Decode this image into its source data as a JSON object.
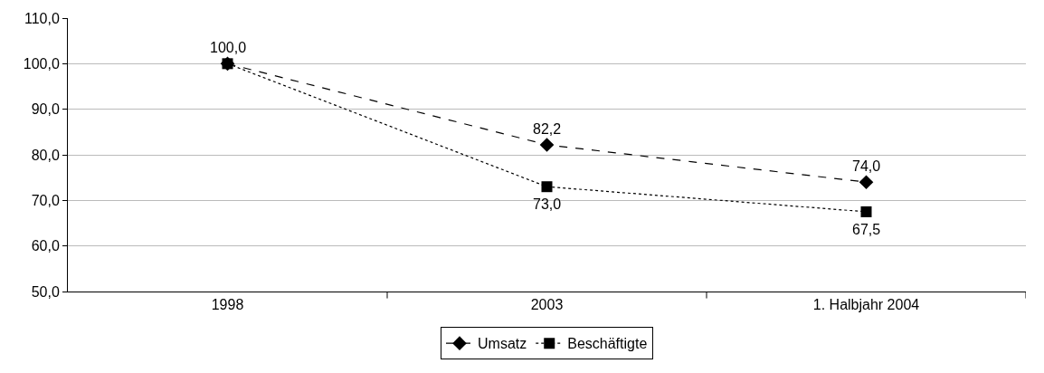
{
  "chart_data": {
    "type": "line",
    "categories": [
      "1998",
      "2003",
      "1. Halbjahr 2004"
    ],
    "series": [
      {
        "name": "Umsatz",
        "color": "#000000",
        "values": [
          100.0,
          82.2,
          74.0
        ],
        "marker": "diamond",
        "line_style": "dashed",
        "value_labels": [
          "100,0",
          "82,2",
          "74,0"
        ]
      },
      {
        "name": "Beschäftigte",
        "color": "#000000",
        "values": [
          100.0,
          73.0,
          67.5
        ],
        "marker": "square",
        "line_style": "dotted",
        "value_labels": [
          null,
          "73,0",
          "67,5"
        ]
      }
    ],
    "ylim": [
      50,
      110
    ],
    "yticks": [
      {
        "value": 50,
        "label": "50,0"
      },
      {
        "value": 60,
        "label": "60,0"
      },
      {
        "value": 70,
        "label": "70,0"
      },
      {
        "value": 80,
        "label": "80,0"
      },
      {
        "value": 90,
        "label": "90,0"
      },
      {
        "value": 100,
        "label": "100,0"
      },
      {
        "value": 110,
        "label": "110,0"
      }
    ],
    "grid": "y",
    "legend": "bottom"
  }
}
